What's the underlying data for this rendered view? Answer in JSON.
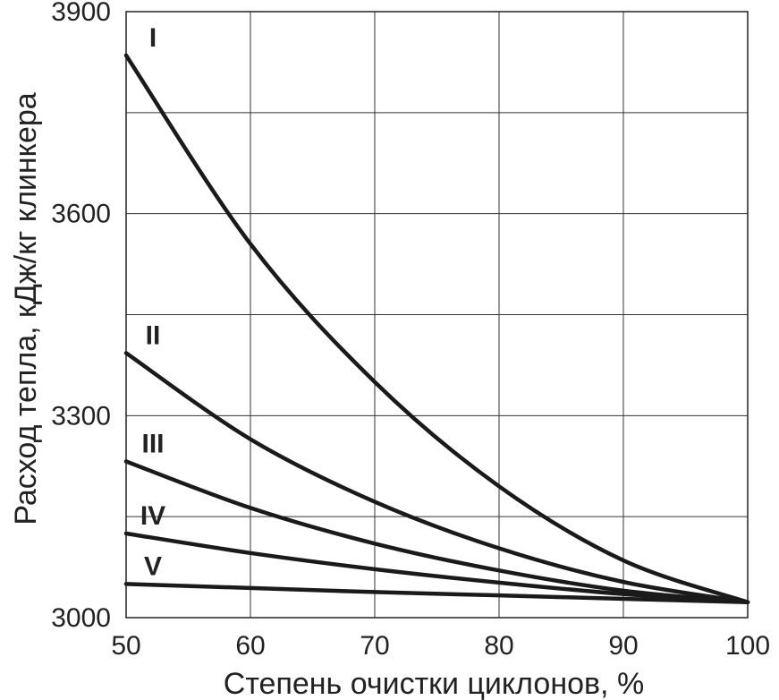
{
  "chart_data": {
    "type": "line",
    "xlabel": "Степень очистки циклонов, %",
    "ylabel": "Расход тепла, кДж/кг клинкера",
    "xlim": [
      50,
      100
    ],
    "ylim": [
      3000,
      3900
    ],
    "x_ticks": [
      50,
      60,
      70,
      80,
      90,
      100
    ],
    "y_ticks": [
      3000,
      3300,
      3600,
      3900
    ],
    "x_gridlines": [
      50,
      60,
      70,
      80,
      90,
      100
    ],
    "y_gridlines": [
      3000,
      3150,
      3300,
      3450,
      3600,
      3750,
      3900
    ],
    "grid": true,
    "legend": "labels next to curves",
    "x": [
      50,
      60,
      70,
      80,
      90,
      100
    ],
    "series": [
      {
        "name": "I",
        "values": [
          3835,
          3555,
          3350,
          3195,
          3085,
          3023
        ]
      },
      {
        "name": "II",
        "values": [
          3393,
          3265,
          3172,
          3103,
          3053,
          3023
        ]
      },
      {
        "name": "III",
        "values": [
          3232,
          3163,
          3110,
          3070,
          3040,
          3023
        ]
      },
      {
        "name": "IV",
        "values": [
          3125,
          3096,
          3072,
          3052,
          3035,
          3023
        ]
      },
      {
        "name": "V",
        "values": [
          3050,
          3044,
          3038,
          3033,
          3028,
          3023
        ]
      }
    ]
  }
}
